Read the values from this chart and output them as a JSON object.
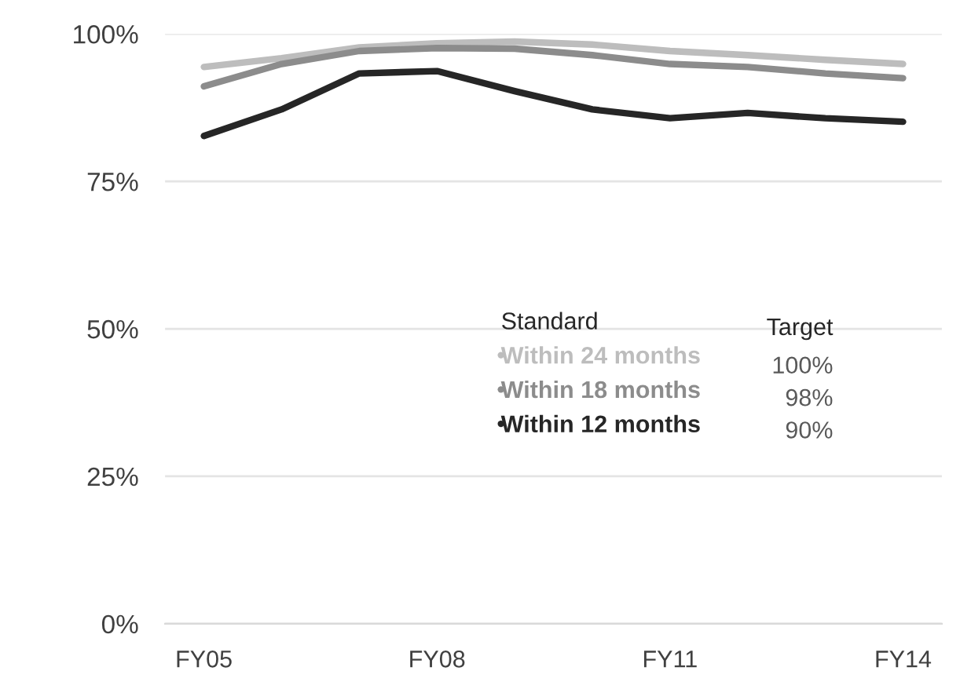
{
  "chart_data": {
    "type": "line",
    "categories": [
      "FY05",
      null,
      null,
      "FY08",
      null,
      null,
      "FY11",
      null,
      null,
      "FY14"
    ],
    "series": [
      {
        "name": "Within 24 months",
        "color": "#bdbdbd",
        "values": [
          94.4,
          95.9,
          97.7,
          98.4,
          98.7,
          98.2,
          97.1,
          96.4,
          95.6,
          94.9
        ]
      },
      {
        "name": "Within 18 months",
        "color": "#8c8c8c",
        "values": [
          91.1,
          94.9,
          97.1,
          97.6,
          97.5,
          96.4,
          94.9,
          94.4,
          93.3,
          92.5
        ]
      },
      {
        "name": "Within 12 months",
        "color": "#262626",
        "values": [
          82.7,
          87.2,
          93.3,
          93.7,
          90.3,
          87.2,
          85.7,
          86.6,
          85.7,
          85.1
        ]
      }
    ],
    "ylim": [
      0,
      100
    ],
    "yticks": [
      {
        "value": 0,
        "label": "0%"
      },
      {
        "value": 25,
        "label": "25%"
      },
      {
        "value": 50,
        "label": "50%"
      },
      {
        "value": 75,
        "label": "75%"
      },
      {
        "value": 100,
        "label": "100%"
      }
    ],
    "grid": "y",
    "legend": "center",
    "legend_title": "Standard",
    "marker": "none",
    "line_style": "solid",
    "annotations": [
      "Target",
      "100%",
      "98%",
      "90%"
    ]
  }
}
